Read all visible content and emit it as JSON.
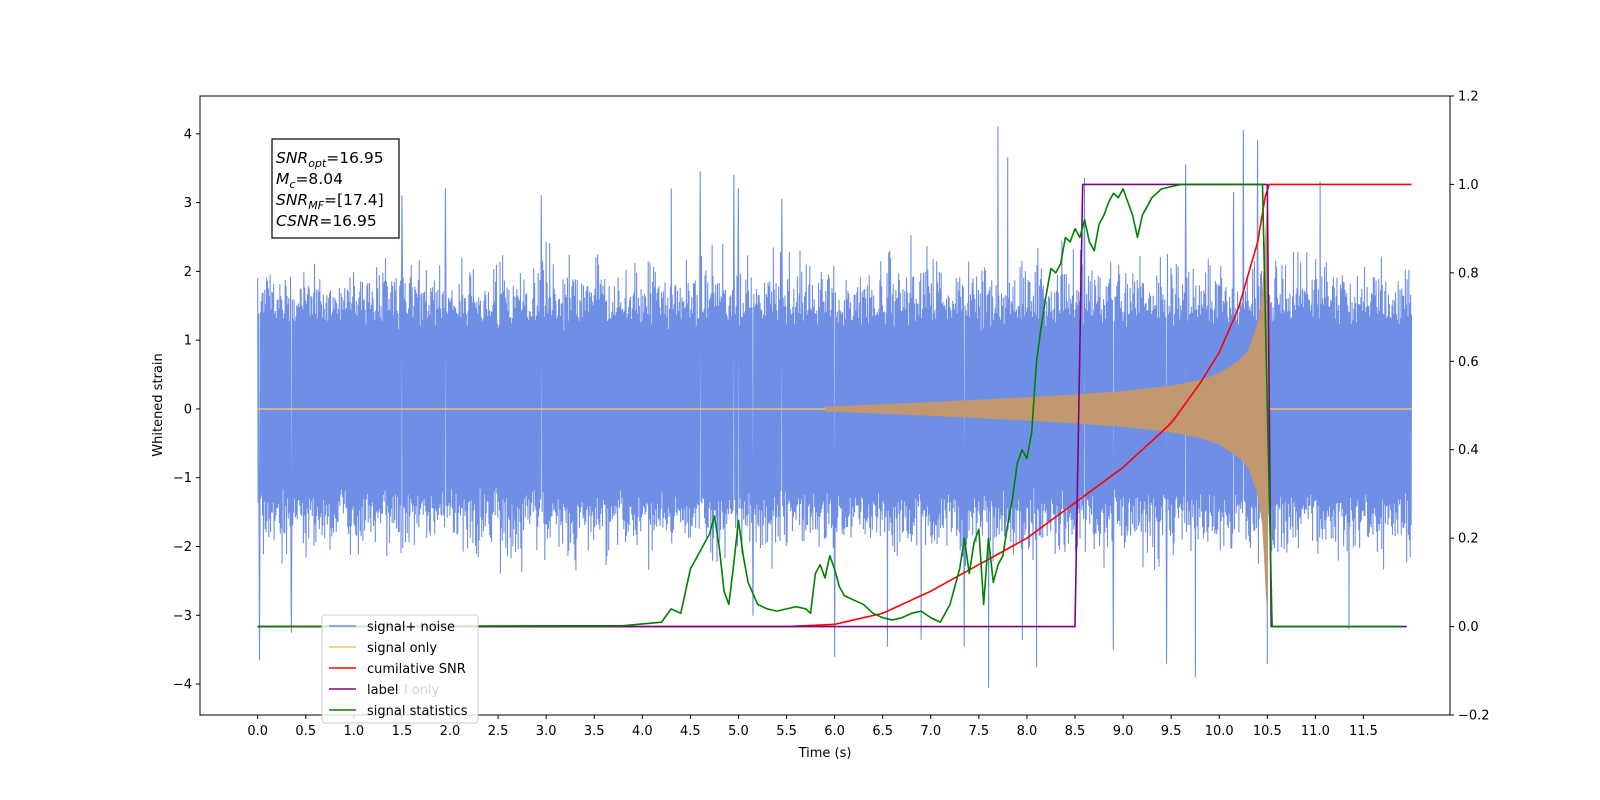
{
  "chart_data": {
    "type": "line",
    "xlabel": "Time (s)",
    "ylabel_left": "Whitened strain",
    "ylabel_right": "",
    "xlim": [
      -0.6,
      12.4
    ],
    "ylim_left": [
      -4.45,
      4.55
    ],
    "ylim_right": [
      -0.2,
      1.2
    ],
    "x_ticks": [
      "0.0",
      "0.5",
      "1.0",
      "1.5",
      "2.0",
      "2.5",
      "3.0",
      "3.5",
      "4.0",
      "4.5",
      "5.0",
      "5.5",
      "6.0",
      "6.5",
      "7.0",
      "7.5",
      "8.0",
      "8.5",
      "9.0",
      "9.5",
      "10.0",
      "10.5",
      "11.0",
      "11.5"
    ],
    "y_ticks_left": [
      "−4",
      "−3",
      "−2",
      "−1",
      "0",
      "1",
      "2",
      "3",
      "4"
    ],
    "y_ticks_right": [
      "−0.2",
      "0.0",
      "0.2",
      "0.4",
      "0.6",
      "0.8",
      "1.0",
      "1.2"
    ],
    "colors": {
      "signal_noise": "#6f8fe6",
      "signal_only": "#f7c063",
      "signal_only_band": "#c0976e",
      "cumulative_snr": "#ff0000",
      "label": "#800080",
      "signal_statistics": "#008000"
    },
    "annotation": [
      {
        "sym": "SNR",
        "sub": "opt",
        "val": "=16.95"
      },
      {
        "sym": "M",
        "sub": "c",
        "val": "=8.04"
      },
      {
        "sym": "SNR",
        "sub": "MF",
        "val": "=[17.4]"
      },
      {
        "sym": "CSNR",
        "sub": "",
        "val": "=16.95"
      }
    ],
    "series": [
      {
        "name": "signal+ noise",
        "axis": "left",
        "description_kind": "noise band",
        "x_range": [
          0,
          12.0
        ],
        "typical_band": [
          -2.3,
          2.4
        ],
        "extreme_peaks": [
          [
            0.02,
            -3.65
          ],
          [
            0.35,
            -3.25
          ],
          [
            1.5,
            3.1
          ],
          [
            1.95,
            3.2
          ],
          [
            2.95,
            3.1
          ],
          [
            4.3,
            3.2
          ],
          [
            4.6,
            3.45
          ],
          [
            4.95,
            3.4
          ],
          [
            5.0,
            3.2
          ],
          [
            5.15,
            -3.0
          ],
          [
            5.45,
            3.05
          ],
          [
            6.0,
            -3.6
          ],
          [
            6.55,
            -3.45
          ],
          [
            6.9,
            -3.35
          ],
          [
            7.35,
            -3.45
          ],
          [
            7.6,
            -4.05
          ],
          [
            7.7,
            4.1
          ],
          [
            7.8,
            3.65
          ],
          [
            7.95,
            -3.35
          ],
          [
            8.1,
            -3.75
          ],
          [
            8.6,
            3.35
          ],
          [
            8.9,
            -3.5
          ],
          [
            9.45,
            -3.7
          ],
          [
            9.65,
            3.55
          ],
          [
            9.75,
            -3.9
          ],
          [
            10.15,
            3.15
          ],
          [
            10.25,
            4.05
          ],
          [
            10.4,
            3.9
          ],
          [
            10.5,
            -3.7
          ],
          [
            11.05,
            3.3
          ],
          [
            11.35,
            -3.2
          ]
        ]
      },
      {
        "name": "signal only",
        "axis": "left",
        "description_kind": "chirp envelope",
        "x": [
          0,
          6.0,
          7.0,
          8.0,
          8.5,
          9.0,
          9.5,
          9.8,
          10.0,
          10.2,
          10.3,
          10.4,
          10.45,
          10.5,
          10.52,
          12.0
        ],
        "envelope": [
          0.02,
          0.04,
          0.1,
          0.17,
          0.21,
          0.26,
          0.34,
          0.42,
          0.52,
          0.7,
          0.85,
          1.25,
          1.7,
          3.15,
          0.02,
          0.02
        ]
      },
      {
        "name": "cumilative SNR",
        "axis": "right",
        "x": [
          0,
          5.0,
          5.5,
          6.0,
          6.5,
          7.0,
          7.5,
          8.0,
          8.5,
          9.0,
          9.5,
          9.8,
          10.0,
          10.2,
          10.4,
          10.5,
          12.0
        ],
        "y": [
          0.0,
          0.0,
          0.0,
          0.005,
          0.03,
          0.08,
          0.14,
          0.2,
          0.28,
          0.36,
          0.46,
          0.55,
          0.62,
          0.72,
          0.87,
          1.0,
          1.0
        ]
      },
      {
        "name": "label",
        "axis": "right",
        "x": [
          0,
          8.5,
          8.58,
          10.5,
          10.54,
          11.95
        ],
        "y": [
          0.0,
          0.0,
          1.0,
          1.0,
          0.0,
          0.0
        ]
      },
      {
        "name": "signal statistics",
        "axis": "right",
        "x": [
          0,
          3.8,
          4.0,
          4.2,
          4.3,
          4.4,
          4.5,
          4.6,
          4.7,
          4.75,
          4.8,
          4.85,
          4.9,
          4.95,
          5.0,
          5.05,
          5.1,
          5.2,
          5.3,
          5.4,
          5.5,
          5.6,
          5.7,
          5.75,
          5.8,
          5.85,
          5.9,
          5.95,
          6.0,
          6.05,
          6.1,
          6.2,
          6.3,
          6.4,
          6.5,
          6.6,
          6.7,
          6.8,
          6.9,
          7.0,
          7.1,
          7.2,
          7.3,
          7.35,
          7.4,
          7.45,
          7.5,
          7.55,
          7.6,
          7.65,
          7.7,
          7.75,
          7.8,
          7.85,
          7.9,
          7.95,
          8.0,
          8.05,
          8.1,
          8.15,
          8.2,
          8.25,
          8.3,
          8.35,
          8.4,
          8.45,
          8.5,
          8.55,
          8.6,
          8.65,
          8.7,
          8.75,
          8.8,
          8.85,
          8.9,
          8.95,
          9.0,
          9.05,
          9.1,
          9.15,
          9.2,
          9.3,
          9.4,
          9.5,
          9.6,
          9.7,
          9.8,
          9.9,
          10.0,
          10.2,
          10.4,
          10.45,
          10.5,
          10.55,
          10.6,
          10.7,
          11.0,
          11.5,
          11.9
        ],
        "y": [
          0.0,
          0.002,
          0.006,
          0.01,
          0.04,
          0.03,
          0.13,
          0.17,
          0.21,
          0.25,
          0.18,
          0.08,
          0.05,
          0.14,
          0.24,
          0.16,
          0.1,
          0.05,
          0.04,
          0.035,
          0.04,
          0.045,
          0.04,
          0.03,
          0.12,
          0.14,
          0.11,
          0.16,
          0.13,
          0.09,
          0.07,
          0.06,
          0.05,
          0.03,
          0.02,
          0.015,
          0.02,
          0.03,
          0.035,
          0.02,
          0.01,
          0.05,
          0.13,
          0.2,
          0.12,
          0.19,
          0.22,
          0.05,
          0.2,
          0.1,
          0.14,
          0.16,
          0.23,
          0.29,
          0.37,
          0.4,
          0.38,
          0.44,
          0.6,
          0.68,
          0.75,
          0.81,
          0.8,
          0.82,
          0.88,
          0.87,
          0.9,
          0.88,
          0.92,
          0.87,
          0.85,
          0.91,
          0.93,
          0.96,
          0.98,
          0.97,
          0.99,
          0.96,
          0.93,
          0.88,
          0.93,
          0.97,
          0.99,
          0.995,
          1.0,
          1.0,
          1.0,
          1.0,
          1.0,
          1.0,
          1.0,
          1.0,
          0.5,
          0.0,
          0.0,
          0.0,
          0.0,
          0.0,
          0.0
        ]
      }
    ],
    "legend": {
      "placement": "lower-left",
      "entries": [
        "signal+ noise",
        "signal only",
        "cumilative SNR",
        "label",
        "signal statistics"
      ],
      "hidden_fragment": "l only"
    }
  }
}
